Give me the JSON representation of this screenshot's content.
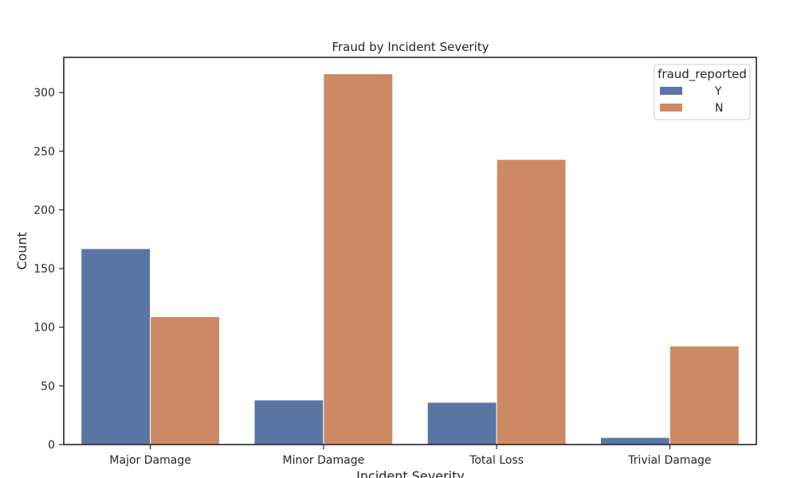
{
  "chart_data": {
    "type": "bar",
    "title": "Fraud by Incident Severity",
    "xlabel": "Incident Severity",
    "ylabel": "Count",
    "categories": [
      "Major Damage",
      "Minor Damage",
      "Total Loss",
      "Trivial Damage"
    ],
    "series": [
      {
        "name": "Y",
        "values": [
          167,
          38,
          36,
          6
        ],
        "color": "#5975a4"
      },
      {
        "name": "N",
        "values": [
          109,
          316,
          243,
          84
        ],
        "color": "#cc8963"
      }
    ],
    "ylim": [
      0,
      330
    ],
    "yticks": [
      0,
      50,
      100,
      150,
      200,
      250,
      300
    ],
    "legend": {
      "title": "fraud_reported",
      "placement": "upper right"
    },
    "grid": false
  }
}
